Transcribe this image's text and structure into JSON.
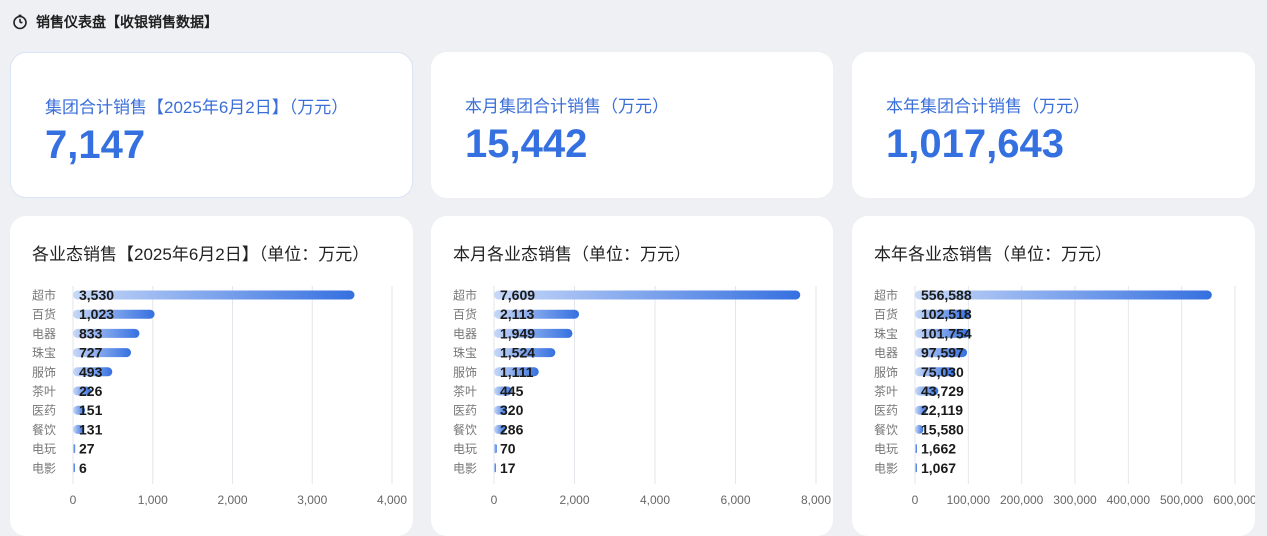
{
  "page": {
    "title": "销售仪表盘【收银销售数据】",
    "icon": "timer-icon"
  },
  "kpis": [
    {
      "label": "集团合计销售【2025年6月2日】（万元）",
      "value": "7,147"
    },
    {
      "label": "本月集团合计销售（万元）",
      "value": "15,442"
    },
    {
      "label": "本年集团合计销售（万元）",
      "value": "1,017,643"
    }
  ],
  "colors": {
    "bar_start": "#c7d8f8",
    "bar_end": "#3570e0",
    "kpi_value": "#3570e0"
  },
  "chart_data": [
    {
      "type": "bar",
      "orientation": "horizontal",
      "title": "各业态销售【2025年6月2日】（单位：万元）",
      "categories": [
        "超市",
        "百货",
        "电器",
        "珠宝",
        "服饰",
        "茶叶",
        "医药",
        "餐饮",
        "电玩",
        "电影"
      ],
      "values": [
        3530,
        1023,
        833,
        727,
        493,
        226,
        151,
        131,
        27,
        6
      ],
      "value_labels": [
        "3,530",
        "1,023",
        "833",
        "727",
        "493",
        "226",
        "151",
        "131",
        "27",
        "6"
      ],
      "xlim": [
        0,
        4000
      ],
      "xticks": [
        0,
        1000,
        2000,
        3000,
        4000
      ],
      "xtick_labels": [
        "0",
        "1,000",
        "2,000",
        "3,000",
        "4,000"
      ],
      "grid": true
    },
    {
      "type": "bar",
      "orientation": "horizontal",
      "title": "本月各业态销售（单位：万元）",
      "categories": [
        "超市",
        "百货",
        "电器",
        "珠宝",
        "服饰",
        "茶叶",
        "医药",
        "餐饮",
        "电玩",
        "电影"
      ],
      "values": [
        7609,
        2113,
        1949,
        1524,
        1111,
        445,
        320,
        286,
        70,
        17
      ],
      "value_labels": [
        "7,609",
        "2,113",
        "1,949",
        "1,524",
        "1,111",
        "445",
        "320",
        "286",
        "70",
        "17"
      ],
      "xlim": [
        0,
        8000
      ],
      "xticks": [
        0,
        2000,
        4000,
        6000,
        8000
      ],
      "xtick_labels": [
        "0",
        "2,000",
        "4,000",
        "6,000",
        "8,000"
      ],
      "grid": true
    },
    {
      "type": "bar",
      "orientation": "horizontal",
      "title": "本年各业态销售（单位：万元）",
      "categories": [
        "超市",
        "百货",
        "珠宝",
        "电器",
        "服饰",
        "茶叶",
        "医药",
        "餐饮",
        "电玩",
        "电影"
      ],
      "values": [
        556588,
        102518,
        101754,
        97597,
        75030,
        43729,
        22119,
        15580,
        1662,
        1067
      ],
      "value_labels": [
        "556,588",
        "102,518",
        "101,754",
        "97,597",
        "75,030",
        "43,729",
        "22,119",
        "15,580",
        "1,662",
        "1,067"
      ],
      "xlim": [
        0,
        600000
      ],
      "xticks": [
        0,
        100000,
        200000,
        300000,
        400000,
        500000,
        600000
      ],
      "xtick_labels": [
        "0",
        "100,000",
        "200,000",
        "300,000",
        "400,000",
        "500,000",
        "600,000"
      ],
      "grid": true
    }
  ]
}
